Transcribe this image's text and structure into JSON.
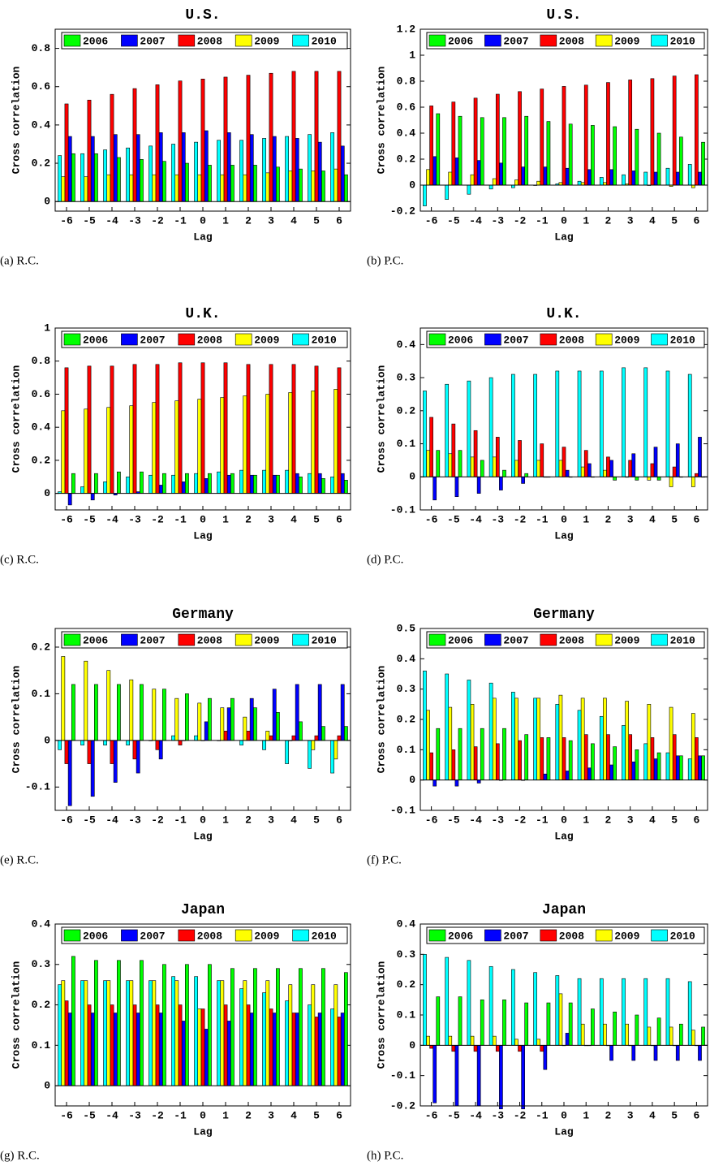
{
  "chart_data": [
    {
      "type": "bar",
      "title": "U.S.",
      "caption": "(a) R.C.",
      "x_label": "Lag",
      "y_label": "Cross correlation",
      "categories": [
        "-6",
        "-5",
        "-4",
        "-3",
        "-2",
        "-1",
        "0",
        "1",
        "2",
        "3",
        "4",
        "5",
        "6"
      ],
      "ylim": [
        -0.05,
        0.9
      ],
      "yticks": [
        0,
        0.2,
        0.4,
        0.6,
        0.8
      ],
      "series": [
        {
          "name": "2006",
          "color": "#00ff00",
          "values": [
            0.25,
            0.25,
            0.23,
            0.22,
            0.21,
            0.2,
            0.19,
            0.19,
            0.19,
            0.18,
            0.17,
            0.16,
            0.14
          ]
        },
        {
          "name": "2007",
          "color": "#0000ff",
          "values": [
            0.34,
            0.34,
            0.35,
            0.35,
            0.36,
            0.36,
            0.37,
            0.36,
            0.35,
            0.34,
            0.33,
            0.31,
            0.29
          ]
        },
        {
          "name": "2008",
          "color": "#ff0000",
          "values": [
            0.51,
            0.53,
            0.56,
            0.59,
            0.61,
            0.63,
            0.64,
            0.65,
            0.66,
            0.67,
            0.68,
            0.68,
            0.68
          ]
        },
        {
          "name": "2009",
          "color": "#ffff00",
          "values": [
            0.13,
            0.13,
            0.14,
            0.14,
            0.14,
            0.14,
            0.14,
            0.14,
            0.14,
            0.15,
            0.16,
            0.16,
            0.17
          ]
        },
        {
          "name": "2010",
          "color": "#00ffff",
          "values": [
            0.24,
            0.25,
            0.27,
            0.28,
            0.29,
            0.3,
            0.31,
            0.32,
            0.32,
            0.33,
            0.34,
            0.35,
            0.36
          ]
        }
      ]
    },
    {
      "type": "bar",
      "title": "U.S.",
      "caption": "(b) P.C.",
      "x_label": "Lag",
      "y_label": "Cross correlation",
      "categories": [
        "-6",
        "-5",
        "-4",
        "-3",
        "-2",
        "-1",
        "0",
        "1",
        "2",
        "3",
        "4",
        "5",
        "6"
      ],
      "ylim": [
        -0.2,
        1.2
      ],
      "yticks": [
        -0.2,
        0,
        0.2,
        0.4,
        0.6,
        0.8,
        1,
        1.2
      ],
      "series": [
        {
          "name": "2006",
          "color": "#00ff00",
          "values": [
            0.55,
            0.53,
            0.52,
            0.52,
            0.53,
            0.49,
            0.47,
            0.46,
            0.45,
            0.43,
            0.4,
            0.37,
            0.33
          ]
        },
        {
          "name": "2007",
          "color": "#0000ff",
          "values": [
            0.22,
            0.21,
            0.19,
            0.17,
            0.14,
            0.14,
            0.13,
            0.12,
            0.12,
            0.11,
            0.1,
            0.1,
            0.1
          ]
        },
        {
          "name": "2008",
          "color": "#ff0000",
          "values": [
            0.61,
            0.64,
            0.67,
            0.7,
            0.72,
            0.74,
            0.76,
            0.77,
            0.79,
            0.81,
            0.82,
            0.84,
            0.85
          ]
        },
        {
          "name": "2009",
          "color": "#ffff00",
          "values": [
            0.12,
            0.1,
            0.08,
            0.05,
            0.04,
            0.03,
            0.02,
            0.02,
            0.02,
            0.01,
            0,
            -0.01,
            -0.02
          ]
        },
        {
          "name": "2010",
          "color": "#00ffff",
          "values": [
            -0.16,
            -0.11,
            -0.07,
            -0.03,
            -0.02,
            0,
            0.01,
            0.03,
            0.06,
            0.08,
            0.1,
            0.13,
            0.16
          ]
        }
      ]
    },
    {
      "type": "bar",
      "title": "U.K.",
      "caption": "(c) R.C.",
      "x_label": "Lag",
      "y_label": "Cross correlation",
      "categories": [
        "-6",
        "-5",
        "-4",
        "-3",
        "-2",
        "-1",
        "0",
        "1",
        "2",
        "3",
        "4",
        "5",
        "6"
      ],
      "ylim": [
        -0.1,
        1
      ],
      "yticks": [
        0,
        0.2,
        0.4,
        0.6,
        0.8,
        1
      ],
      "series": [
        {
          "name": "2006",
          "color": "#00ff00",
          "values": [
            0.12,
            0.12,
            0.13,
            0.13,
            0.12,
            0.12,
            0.12,
            0.12,
            0.11,
            0.11,
            0.1,
            0.09,
            0.08
          ]
        },
        {
          "name": "2007",
          "color": "#0000ff",
          "values": [
            -0.07,
            -0.04,
            -0.01,
            0.01,
            0.05,
            0.07,
            0.09,
            0.11,
            0.11,
            0.11,
            0.12,
            0.12,
            0.12
          ]
        },
        {
          "name": "2008",
          "color": "#ff0000",
          "values": [
            0.76,
            0.77,
            0.77,
            0.78,
            0.78,
            0.79,
            0.79,
            0.79,
            0.78,
            0.78,
            0.78,
            0.77,
            0.76
          ]
        },
        {
          "name": "2009",
          "color": "#ffff00",
          "values": [
            0.5,
            0.51,
            0.52,
            0.53,
            0.55,
            0.56,
            0.57,
            0.58,
            0.59,
            0.6,
            0.61,
            0.62,
            0.63
          ]
        },
        {
          "name": "2010",
          "color": "#00ffff",
          "values": [
            0.01,
            0.04,
            0.07,
            0.1,
            0.11,
            0.11,
            0.12,
            0.13,
            0.14,
            0.14,
            0.14,
            0.12,
            0.1
          ]
        }
      ]
    },
    {
      "type": "bar",
      "title": "U.K.",
      "caption": "(d) P.C.",
      "x_label": "Lag",
      "y_label": "Cross correlation",
      "categories": [
        "-6",
        "-5",
        "-4",
        "-3",
        "-2",
        "-1",
        "0",
        "1",
        "2",
        "3",
        "4",
        "5",
        "6"
      ],
      "ylim": [
        -0.1,
        0.45
      ],
      "yticks": [
        -0.1,
        0,
        0.1,
        0.2,
        0.3,
        0.4
      ],
      "series": [
        {
          "name": "2006",
          "color": "#00ff00",
          "values": [
            0.08,
            0.08,
            0.05,
            0.02,
            0.01,
            0,
            0,
            0,
            -0.01,
            -0.01,
            -0.01,
            0,
            0
          ]
        },
        {
          "name": "2007",
          "color": "#0000ff",
          "values": [
            -0.07,
            -0.06,
            -0.05,
            -0.04,
            -0.02,
            0,
            0.02,
            0.04,
            0.05,
            0.07,
            0.09,
            0.1,
            0.12
          ]
        },
        {
          "name": "2008",
          "color": "#ff0000",
          "values": [
            0.18,
            0.16,
            0.14,
            0.12,
            0.11,
            0.1,
            0.09,
            0.08,
            0.06,
            0.05,
            0.04,
            0.03,
            0.01
          ]
        },
        {
          "name": "2009",
          "color": "#ffff00",
          "values": [
            0.08,
            0.07,
            0.06,
            0.06,
            0.05,
            0.05,
            0.05,
            0.03,
            0.02,
            0,
            -0.01,
            -0.03,
            -0.03
          ]
        },
        {
          "name": "2010",
          "color": "#00ffff",
          "values": [
            0.26,
            0.28,
            0.29,
            0.3,
            0.31,
            0.31,
            0.32,
            0.32,
            0.32,
            0.33,
            0.33,
            0.32,
            0.31
          ]
        }
      ]
    },
    {
      "type": "bar",
      "title": "Germany",
      "caption": "(e) R.C.",
      "x_label": "Lag",
      "y_label": "Cross correlation",
      "categories": [
        "-6",
        "-5",
        "-4",
        "-3",
        "-2",
        "-1",
        "0",
        "1",
        "2",
        "3",
        "4",
        "5",
        "6"
      ],
      "ylim": [
        -0.15,
        0.24
      ],
      "yticks": [
        -0.1,
        0,
        0.1,
        0.2
      ],
      "series": [
        {
          "name": "2006",
          "color": "#00ff00",
          "values": [
            0.12,
            0.12,
            0.12,
            0.12,
            0.11,
            0.1,
            0.09,
            0.09,
            0.07,
            0.06,
            0.04,
            0.03,
            0.03
          ]
        },
        {
          "name": "2007",
          "color": "#0000ff",
          "values": [
            -0.14,
            -0.12,
            -0.09,
            -0.07,
            -0.04,
            0,
            0.04,
            0.07,
            0.09,
            0.11,
            0.12,
            0.12,
            0.12
          ]
        },
        {
          "name": "2008",
          "color": "#ff0000",
          "values": [
            -0.05,
            -0.05,
            -0.05,
            -0.04,
            -0.02,
            -0.01,
            0,
            0.02,
            0.02,
            0.01,
            0.01,
            0.01,
            0.01
          ]
        },
        {
          "name": "2009",
          "color": "#ffff00",
          "values": [
            0.18,
            0.17,
            0.15,
            0.13,
            0.11,
            0.09,
            0.08,
            0.07,
            0.05,
            0.02,
            0,
            -0.02,
            -0.04
          ]
        },
        {
          "name": "2010",
          "color": "#00ffff",
          "values": [
            -0.02,
            -0.01,
            -0.01,
            -0.01,
            0,
            0.01,
            0.01,
            0,
            -0.01,
            -0.02,
            -0.05,
            -0.06,
            -0.07
          ]
        }
      ]
    },
    {
      "type": "bar",
      "title": "Germany",
      "caption": "(f) P.C.",
      "x_label": "Lag",
      "y_label": "Cross correlation",
      "categories": [
        "-6",
        "-5",
        "-4",
        "-3",
        "-2",
        "-1",
        "0",
        "1",
        "2",
        "3",
        "4",
        "5",
        "6"
      ],
      "ylim": [
        -0.1,
        0.5
      ],
      "yticks": [
        -0.1,
        0,
        0.1,
        0.2,
        0.3,
        0.4,
        0.5
      ],
      "series": [
        {
          "name": "2006",
          "color": "#00ff00",
          "values": [
            0.17,
            0.17,
            0.17,
            0.17,
            0.15,
            0.14,
            0.13,
            0.12,
            0.11,
            0.1,
            0.09,
            0.08,
            0.08
          ]
        },
        {
          "name": "2007",
          "color": "#0000ff",
          "values": [
            -0.02,
            -0.02,
            -0.01,
            0,
            0,
            0.02,
            0.03,
            0.04,
            0.05,
            0.06,
            0.07,
            0.08,
            0.08
          ]
        },
        {
          "name": "2008",
          "color": "#ff0000",
          "values": [
            0.09,
            0.1,
            0.11,
            0.12,
            0.13,
            0.14,
            0.14,
            0.15,
            0.15,
            0.15,
            0.14,
            0.15,
            0.14
          ]
        },
        {
          "name": "2009",
          "color": "#ffff00",
          "values": [
            0.23,
            0.24,
            0.25,
            0.27,
            0.27,
            0.27,
            0.28,
            0.27,
            0.27,
            0.26,
            0.25,
            0.24,
            0.22
          ]
        },
        {
          "name": "2010",
          "color": "#00ffff",
          "values": [
            0.36,
            0.35,
            0.33,
            0.32,
            0.29,
            0.27,
            0.25,
            0.23,
            0.21,
            0.18,
            0.12,
            0.09,
            0.07
          ]
        }
      ]
    },
    {
      "type": "bar",
      "title": "Japan",
      "caption": "(g) R.C.",
      "x_label": "Lag",
      "y_label": "Cross correlation",
      "categories": [
        "-6",
        "-5",
        "-4",
        "-3",
        "-2",
        "-1",
        "0",
        "1",
        "2",
        "3",
        "4",
        "5",
        "6"
      ],
      "ylim": [
        -0.05,
        0.4
      ],
      "yticks": [
        0,
        0.1,
        0.2,
        0.3,
        0.4
      ],
      "series": [
        {
          "name": "2006",
          "color": "#00ff00",
          "values": [
            0.32,
            0.31,
            0.31,
            0.31,
            0.3,
            0.3,
            0.3,
            0.29,
            0.29,
            0.29,
            0.29,
            0.29,
            0.28
          ]
        },
        {
          "name": "2007",
          "color": "#0000ff",
          "values": [
            0.18,
            0.18,
            0.18,
            0.18,
            0.18,
            0.16,
            0.14,
            0.16,
            0.18,
            0.18,
            0.18,
            0.18,
            0.18
          ]
        },
        {
          "name": "2008",
          "color": "#ff0000",
          "values": [
            0.21,
            0.2,
            0.2,
            0.2,
            0.2,
            0.2,
            0.19,
            0.2,
            0.2,
            0.19,
            0.18,
            0.17,
            0.17
          ]
        },
        {
          "name": "2009",
          "color": "#ffff00",
          "values": [
            0.26,
            0.26,
            0.26,
            0.26,
            0.26,
            0.26,
            0.19,
            0.26,
            0.26,
            0.26,
            0.25,
            0.25,
            0.25
          ]
        },
        {
          "name": "2010",
          "color": "#00ffff",
          "values": [
            0.25,
            0.26,
            0.26,
            0.26,
            0.26,
            0.27,
            0.27,
            0.26,
            0.24,
            0.23,
            0.21,
            0.2,
            0.19
          ]
        }
      ]
    },
    {
      "type": "bar",
      "title": "Japan",
      "caption": "(h) P.C.",
      "x_label": "Lag",
      "y_label": "Cross correlation",
      "categories": [
        "-6",
        "-5",
        "-4",
        "-3",
        "-2",
        "-1",
        "0",
        "1",
        "2",
        "3",
        "4",
        "5",
        "6"
      ],
      "ylim": [
        -0.2,
        0.4
      ],
      "yticks": [
        -0.2,
        -0.1,
        0,
        0.1,
        0.2,
        0.3,
        0.4
      ],
      "series": [
        {
          "name": "2006",
          "color": "#00ff00",
          "values": [
            0.16,
            0.16,
            0.15,
            0.15,
            0.14,
            0.14,
            0.14,
            0.12,
            0.11,
            0.1,
            0.09,
            0.07,
            0.06
          ]
        },
        {
          "name": "2007",
          "color": "#0000ff",
          "values": [
            -0.19,
            -0.2,
            -0.2,
            -0.21,
            -0.21,
            -0.08,
            0.04,
            0,
            -0.05,
            -0.05,
            -0.05,
            -0.05,
            -0.05
          ]
        },
        {
          "name": "2008",
          "color": "#ff0000",
          "values": [
            -0.01,
            -0.02,
            -0.02,
            -0.02,
            -0.02,
            -0.02,
            0,
            0,
            0,
            0,
            0,
            0,
            0
          ]
        },
        {
          "name": "2009",
          "color": "#ffff00",
          "values": [
            0.03,
            0.03,
            0.03,
            0.03,
            0.02,
            0.02,
            0.17,
            0.07,
            0.07,
            0.07,
            0.06,
            0.06,
            0.05
          ]
        },
        {
          "name": "2010",
          "color": "#00ffff",
          "values": [
            0.3,
            0.29,
            0.28,
            0.26,
            0.25,
            0.24,
            0.23,
            0.22,
            0.22,
            0.22,
            0.22,
            0.22,
            0.21
          ]
        }
      ]
    }
  ]
}
